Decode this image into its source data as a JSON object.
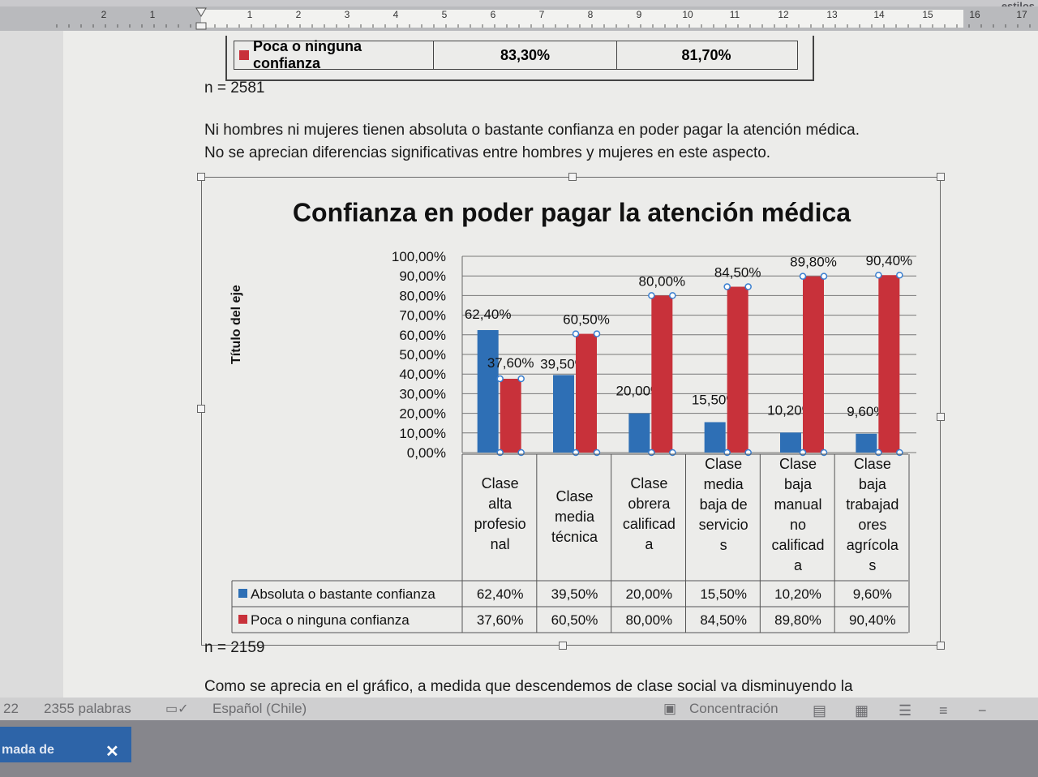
{
  "window": {
    "styles_label": "estilos"
  },
  "ruler": {
    "numbers": [
      "2",
      "1",
      "1",
      "2",
      "3",
      "4",
      "5",
      "6",
      "7",
      "8",
      "9",
      "10",
      "11",
      "12",
      "13",
      "14",
      "15",
      "16",
      "17"
    ]
  },
  "top_table": {
    "label": "Poca o ninguna confianza",
    "value_1": "83,30%",
    "value_2": "81,70%"
  },
  "n_top": "n = 2581",
  "paragraph_1": "Ni hombres ni mujeres tienen absoluta o bastante confianza en poder pagar la atención médica.",
  "paragraph_2": "No se aprecian diferencias significativas entre hombres y mujeres en este aspecto.",
  "n_bottom": "n = 2159",
  "paragraph_3": "Como se aprecia en el gráfico, a medida que descendemos de clase social va disminuyendo la",
  "chart_data": {
    "type": "bar",
    "title": "Confianza en poder pagar la atención médica",
    "ylabel": "Título del eje",
    "xlabel": "",
    "ylim": [
      0,
      100
    ],
    "yticks": [
      "0,00%",
      "10,00%",
      "20,00%",
      "30,00%",
      "40,00%",
      "50,00%",
      "60,00%",
      "70,00%",
      "80,00%",
      "90,00%",
      "100,00%"
    ],
    "categories": [
      [
        "Clase",
        "alta",
        "profesio",
        "nal"
      ],
      [
        "Clase",
        "media",
        "técnica"
      ],
      [
        "Clase",
        "obrera",
        "calificad",
        "a"
      ],
      [
        "Clase",
        "media",
        "baja de",
        "servicio",
        "s"
      ],
      [
        "Clase",
        "baja",
        "manual",
        "no",
        "calificad",
        "a"
      ],
      [
        "Clase",
        "baja",
        "trabajad",
        "ores",
        "agrícola",
        "s"
      ]
    ],
    "series": [
      {
        "name": "Absoluta o bastante confianza",
        "color": "#2e6fb5",
        "values": [
          62.4,
          39.5,
          20.0,
          15.5,
          10.2,
          9.6
        ],
        "labels": [
          "62,40%",
          "39,50%",
          "20,00%",
          "15,50%",
          "10,20%",
          "9,60%"
        ]
      },
      {
        "name": "Poca o ninguna confianza",
        "color": "#c8313a",
        "values": [
          37.6,
          60.5,
          80.0,
          84.5,
          89.8,
          90.4
        ],
        "labels": [
          "37,60%",
          "60,50%",
          "80,00%",
          "84,50%",
          "89,80%",
          "90,40%"
        ]
      }
    ],
    "grid": true,
    "legend": "data-table"
  },
  "status_bar": {
    "page": "22",
    "words": "2355 palabras",
    "language": "Español (Chile)",
    "focus_mode": "Concentración"
  },
  "taskbar": {
    "item_label": "mada de",
    "close_glyph": "✕"
  }
}
